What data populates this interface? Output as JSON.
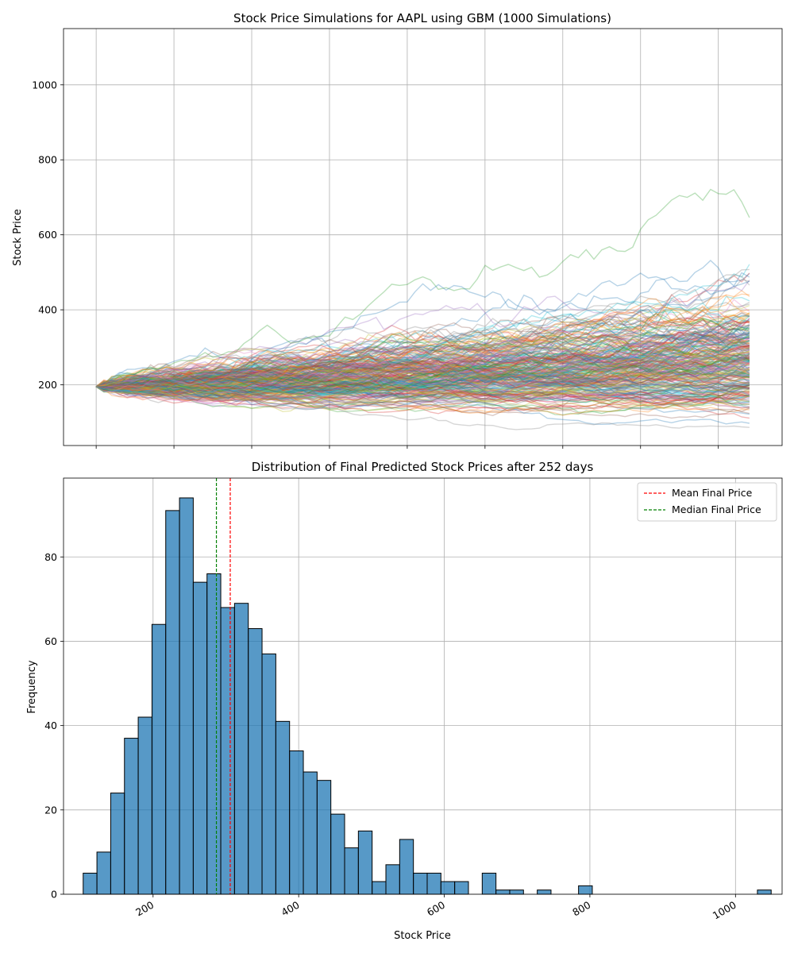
{
  "chart_data": [
    {
      "type": "line",
      "title": "Stock Price Simulations for AAPL using GBM (1000 Simulations)",
      "xlabel": "",
      "ylabel": "Stock Price",
      "xlim": [
        -12.6,
        264.6
      ],
      "ylim": [
        38,
        1150
      ],
      "yticks": [
        200,
        400,
        600,
        800,
        1000
      ],
      "xgrid": [
        0,
        30,
        60,
        90,
        120,
        150,
        180,
        210,
        240
      ],
      "grid": true,
      "start_price": 195,
      "num_simulations": 1000,
      "num_days": 252,
      "final_price_range": [
        95,
        1045
      ],
      "palette": [
        "#1f77b4",
        "#ff7f0e",
        "#2ca02c",
        "#d62728",
        "#9467bd",
        "#8c564b",
        "#e377c2",
        "#7f7f7f",
        "#bcbd22",
        "#17becf"
      ]
    },
    {
      "type": "bar",
      "title": "Distribution of Final Predicted Stock Prices after 252 days",
      "xlabel": "Stock Price",
      "ylabel": "Frequency",
      "xlim": [
        77,
        1064
      ],
      "ylim": [
        0,
        98.7
      ],
      "xticks": [
        200,
        400,
        600,
        800,
        1000
      ],
      "yticks": [
        0,
        20,
        40,
        60,
        80
      ],
      "bin_start": 104,
      "bin_width": 18.9,
      "values": [
        5,
        10,
        24,
        37,
        42,
        64,
        91,
        94,
        74,
        76,
        68,
        69,
        63,
        57,
        41,
        34,
        29,
        27,
        19,
        11,
        15,
        3,
        7,
        13,
        5,
        5,
        3,
        3,
        0,
        5,
        1,
        1,
        0,
        1,
        0,
        0,
        2,
        0,
        0,
        0,
        0,
        0,
        0,
        0,
        0,
        0,
        0,
        0,
        0,
        1
      ],
      "bar_color": "#1f77b4",
      "mean": 306,
      "median": 287,
      "legend": [
        {
          "label": "Mean Final Price",
          "color": "#ff0000"
        },
        {
          "label": "Median Final Price",
          "color": "#008000"
        }
      ],
      "legend_position": "top-right",
      "grid": true
    }
  ]
}
